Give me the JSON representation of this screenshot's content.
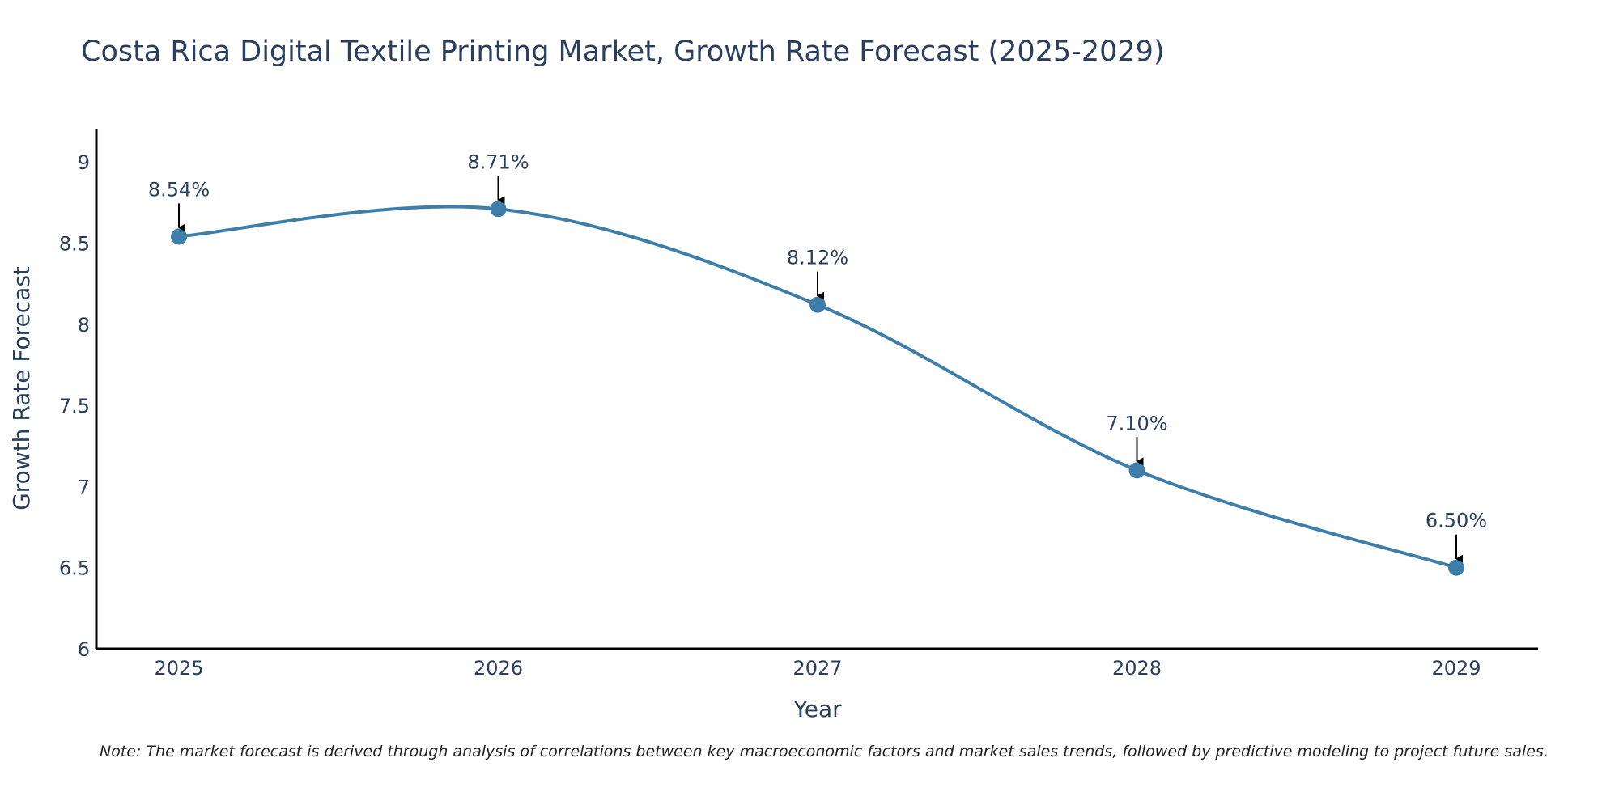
{
  "chart_data": {
    "type": "line",
    "title": "Costa Rica Digital Textile Printing Market, Growth Rate Forecast (2025-2029)",
    "xlabel": "Year",
    "ylabel": "Growth Rate Forecast",
    "categories": [
      "2025",
      "2026",
      "2027",
      "2028",
      "2029"
    ],
    "series": [
      {
        "name": "Growth Rate Forecast",
        "values": [
          8.54,
          8.71,
          8.12,
          7.1,
          6.5
        ],
        "labels": [
          "8.54%",
          "8.71%",
          "8.12%",
          "7.10%",
          "6.50%"
        ],
        "color": "#3d7eaa"
      }
    ],
    "ylim": [
      6,
      9.2
    ],
    "yticks": [
      6,
      6.5,
      7,
      7.5,
      8,
      8.5,
      9
    ],
    "ytick_labels": [
      "6",
      "6.5",
      "7",
      "7.5",
      "8",
      "8.5",
      "9"
    ],
    "grid": false,
    "line_shape": "spline",
    "annotation_style": "arrow-down"
  },
  "note": "Note: The market forecast is derived through analysis of correlations between key macroeconomic factors and market sales trends, followed by predictive modeling to project future sales."
}
